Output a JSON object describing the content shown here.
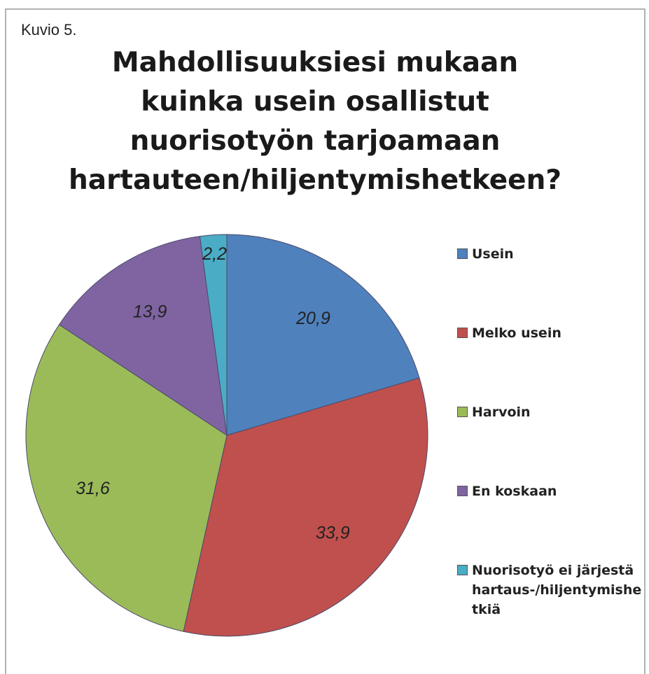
{
  "chart_data": {
    "type": "pie",
    "caption": "Kuvio 5.",
    "title": "Mahdollisuuksiesi mukaan kuinka usein osallistut nuorisotyön tarjoamaan hartauteen/hiljentymishetkeen?",
    "categories": [
      "Usein",
      "Melko usein",
      "Harvoin",
      "En koskaan",
      "Nuorisotyö ei järjestä hartaus-/hiljentymishetkiä"
    ],
    "values": [
      20.9,
      33.9,
      31.6,
      13.9,
      2.2
    ],
    "value_labels": [
      "20,9",
      "33,9",
      "31,6",
      "13,9",
      "2,2"
    ],
    "colors": [
      "#4f81bd",
      "#c0504d",
      "#9bbb59",
      "#8064a2",
      "#4bacc6"
    ],
    "legend": "right"
  }
}
